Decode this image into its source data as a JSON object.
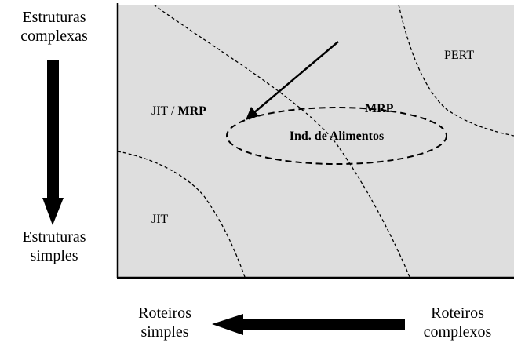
{
  "left_axis": {
    "top_label": [
      "Estruturas",
      "complexas"
    ],
    "bottom_label": [
      "Estruturas",
      "simples"
    ]
  },
  "bottom_axis": {
    "left_label": [
      "Roteiros",
      "simples"
    ],
    "right_label": [
      "Roteiros",
      "complexos"
    ]
  },
  "regions": {
    "jit_mrp_prefix": "JIT / ",
    "jit_mrp_bold": "MRP",
    "mrp": "MRP",
    "pert": "PERT",
    "jit": "JIT"
  },
  "highlight": {
    "ellipse_label": "Ind. de Alimentos"
  },
  "colors": {
    "panel_fill": "#dedede",
    "ink": "#000000"
  }
}
